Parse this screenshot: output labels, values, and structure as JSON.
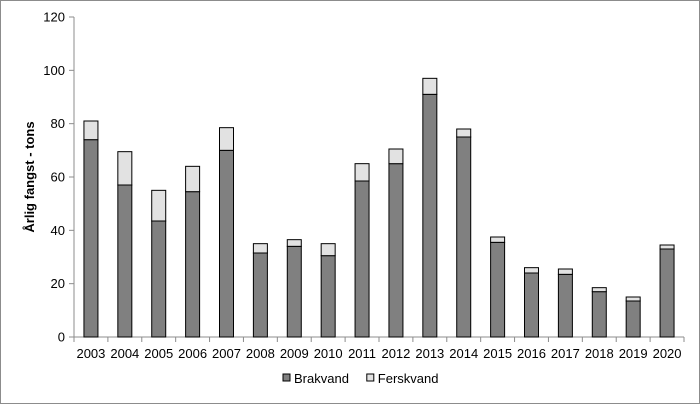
{
  "chart_data": {
    "type": "bar",
    "stacked": true,
    "title": "",
    "xlabel": "",
    "ylabel": "Årlig fangst - tons",
    "ylim": [
      0,
      120
    ],
    "yticks": [
      0,
      20,
      40,
      60,
      80,
      100,
      120
    ],
    "grid": false,
    "legend_position": "bottom",
    "categories": [
      "2003",
      "2004",
      "2005",
      "2006",
      "2007",
      "2008",
      "2009",
      "2010",
      "2011",
      "2012",
      "2013",
      "2014",
      "2015",
      "2016",
      "2017",
      "2018",
      "2019",
      "2020"
    ],
    "series": [
      {
        "name": "Brakvand",
        "color": "#808080",
        "values": [
          74,
          57,
          43.5,
          54.5,
          70,
          31.5,
          34,
          30.5,
          58.5,
          65,
          91,
          75,
          35.5,
          24,
          23.5,
          17,
          13.5,
          33
        ]
      },
      {
        "name": "Ferskvand",
        "color": "#e2e2e2",
        "values": [
          7,
          12.5,
          11.5,
          9.5,
          8.5,
          3.5,
          2.5,
          4.5,
          6.5,
          5.5,
          6,
          3,
          2,
          2,
          2,
          1.5,
          1.5,
          1.5
        ]
      }
    ]
  }
}
